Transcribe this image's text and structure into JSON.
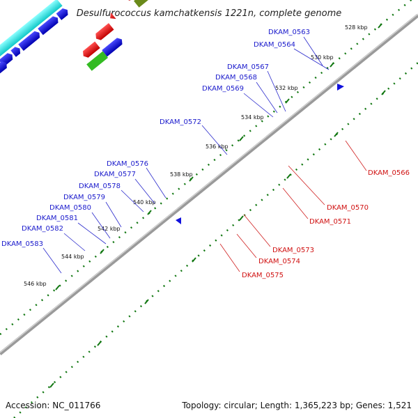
{
  "title": "Desulfurococcus kamchatkensis 1221n, complete genome",
  "footer": {
    "accession": "Accession: NC_011766",
    "summary": "Topology: circular; Length: 1,365,223 bp; Genes: 1,521"
  },
  "ticks": [
    "528 kbp",
    "530 kbp",
    "532 kbp",
    "534 kbp",
    "536 kbp",
    "538 kbp",
    "540 kbp",
    "542 kbp",
    "544 kbp",
    "546 kbp"
  ],
  "genes_outer": [
    "DKAM_0563",
    "DKAM_0564",
    "DKAM_0567",
    "DKAM_0568",
    "DKAM_0569",
    "DKAM_0572",
    "DKAM_0576",
    "DKAM_0577",
    "DKAM_0578",
    "DKAM_0579",
    "DKAM_0580",
    "DKAM_0581",
    "DKAM_0582",
    "DKAM_0583"
  ],
  "genes_inner": [
    "DKAM_0566",
    "DKAM_0570",
    "DKAM_0571",
    "DKAM_0573",
    "DKAM_0574",
    "DKAM_0575"
  ],
  "colors": {
    "backbone": "#8a8a8a",
    "forward_gene": "#1111dd",
    "reverse_gene": "#ee1111",
    "cyan": "#22e6e6",
    "magenta": "#ee1c8a",
    "grey": "#c4c4c4",
    "olive": "#6a8a1a",
    "green": "#33bb22",
    "sky": "#22aaee",
    "salmon": "#ee7777",
    "dark_grey": "#555555",
    "tick_dots": "#117711"
  }
}
